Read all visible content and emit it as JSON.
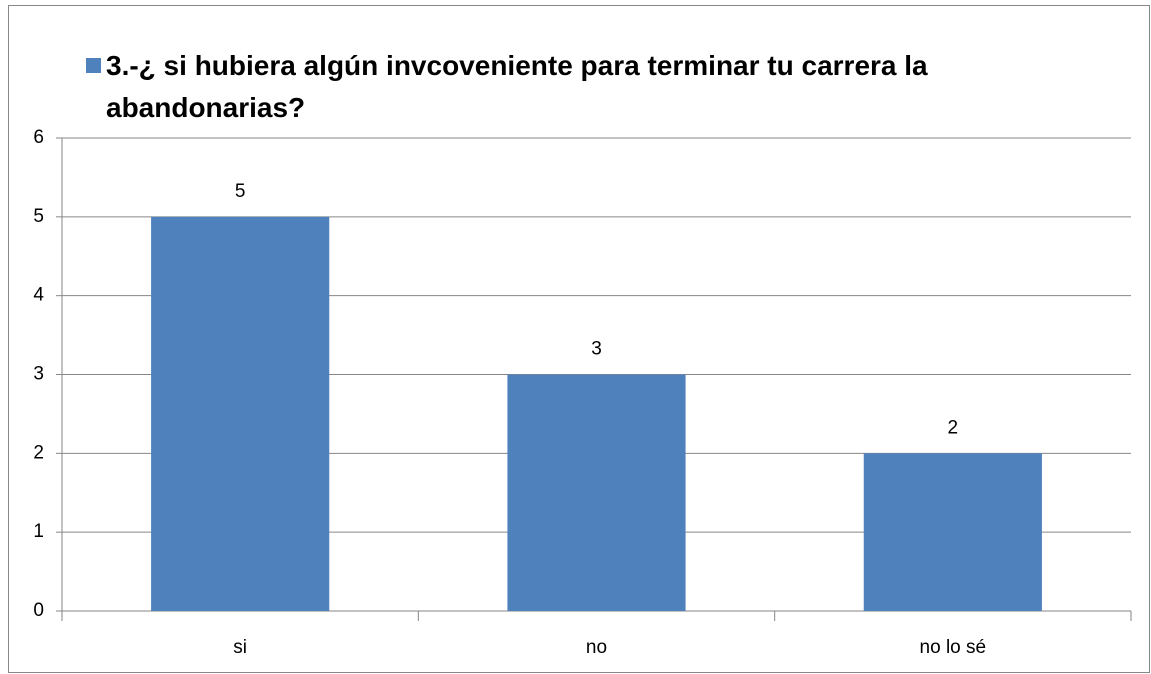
{
  "chart_data": {
    "type": "bar",
    "series": [
      {
        "name": "3.-¿ si hubiera algún invcoveniente para terminar tu carrera la abandonarias?",
        "color": "#4f81bd",
        "values": [
          5,
          3,
          2
        ]
      }
    ],
    "categories": [
      "si",
      "no",
      "no lo sé"
    ],
    "ylim": [
      0,
      6
    ],
    "yticks": [
      0,
      1,
      2,
      3,
      4,
      5,
      6
    ],
    "grid": true,
    "legend": "top"
  }
}
